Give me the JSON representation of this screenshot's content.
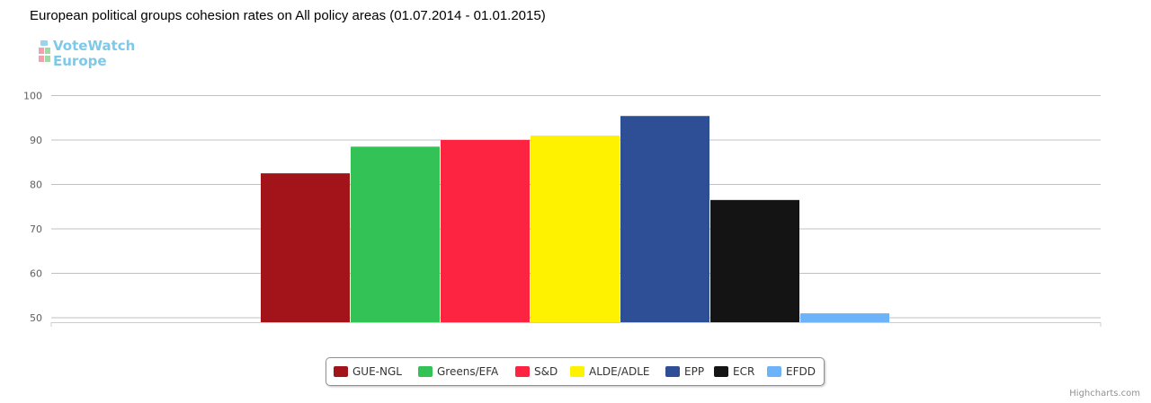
{
  "chart_data": {
    "type": "bar",
    "title": "European political groups cohesion rates on All policy areas (01.07.2014 - 01.01.2015)",
    "xlabel": "",
    "ylabel": "",
    "ylim": [
      49,
      101
    ],
    "yticks": [
      "100",
      "90",
      "80",
      "70",
      "60",
      "50"
    ],
    "grid": true,
    "legend_position": "bottom-center",
    "series": [
      {
        "name": "GUE-NGL",
        "value": 82.5,
        "color": "#a3131a"
      },
      {
        "name": "Greens/EFA",
        "value": 88.5,
        "color": "#33c255"
      },
      {
        "name": "S&D",
        "value": 90.0,
        "color": "#fd2442"
      },
      {
        "name": "ALDE/ADLE",
        "value": 91.0,
        "color": "#fef200"
      },
      {
        "name": "EPP",
        "value": 95.4,
        "color": "#2e4f95"
      },
      {
        "name": "ECR",
        "value": 76.5,
        "color": "#141414"
      },
      {
        "name": "EFDD",
        "value": 51.0,
        "color": "#6db3f9"
      }
    ]
  },
  "logo": {
    "line1": "VoteWatch",
    "line2": "Europe"
  },
  "credits": "Highcharts.com"
}
